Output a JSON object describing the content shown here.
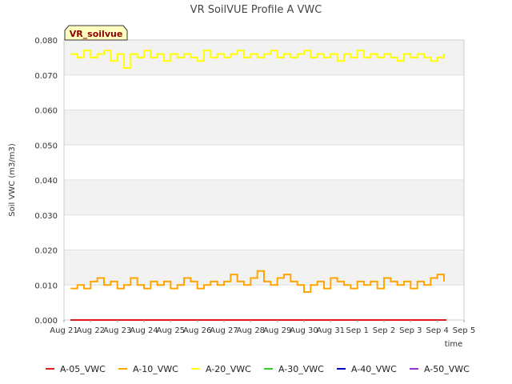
{
  "chart_data": {
    "type": "line",
    "title": "VR SoilVUE Profile A VWC",
    "badge": "VR_soilvue",
    "ylabel": "Soil VWC (m3/m3)",
    "xlabel": "time",
    "ylim": [
      0.0,
      0.08
    ],
    "yticks": [
      "0.000",
      "0.010",
      "0.020",
      "0.030",
      "0.040",
      "0.050",
      "0.060",
      "0.070",
      "0.080"
    ],
    "xticks": [
      "Aug 21",
      "Aug 22",
      "Aug 23",
      "Aug 24",
      "Aug 25",
      "Aug 26",
      "Aug 27",
      "Aug 28",
      "Aug 29",
      "Aug 30",
      "Aug 31",
      "Sep 1",
      "Sep 2",
      "Sep 3",
      "Sep 4",
      "Sep 5"
    ],
    "xlim": [
      "2023-08-21",
      "2023-09-05"
    ],
    "grid": true,
    "legend_position": "bottom",
    "series": [
      {
        "name": "A-05_VWC",
        "color": "#e31a1c",
        "x": [
          "2023-08-21 06:00",
          "2023-09-04 08:00"
        ],
        "values": [
          0.0,
          0.0
        ]
      },
      {
        "name": "A-10_VWC",
        "color": "#ffa500",
        "x": [
          "2023-08-21 06:00",
          "2023-08-21 12:00",
          "2023-08-21 18:00",
          "2023-08-22 00:00",
          "2023-08-22 06:00",
          "2023-08-22 12:00",
          "2023-08-22 18:00",
          "2023-08-23 00:00",
          "2023-08-23 06:00",
          "2023-08-23 12:00",
          "2023-08-23 18:00",
          "2023-08-24 00:00",
          "2023-08-24 06:00",
          "2023-08-24 12:00",
          "2023-08-24 18:00",
          "2023-08-25 00:00",
          "2023-08-25 06:00",
          "2023-08-25 12:00",
          "2023-08-25 18:00",
          "2023-08-26 00:00",
          "2023-08-26 06:00",
          "2023-08-26 12:00",
          "2023-08-26 18:00",
          "2023-08-27 00:00",
          "2023-08-27 06:00",
          "2023-08-27 12:00",
          "2023-08-27 18:00",
          "2023-08-28 00:00",
          "2023-08-28 06:00",
          "2023-08-28 12:00",
          "2023-08-28 18:00",
          "2023-08-29 00:00",
          "2023-08-29 06:00",
          "2023-08-29 12:00",
          "2023-08-29 18:00",
          "2023-08-30 00:00",
          "2023-08-30 06:00",
          "2023-08-30 12:00",
          "2023-08-30 18:00",
          "2023-08-31 00:00",
          "2023-08-31 06:00",
          "2023-08-31 12:00",
          "2023-08-31 18:00",
          "2023-09-01 00:00",
          "2023-09-01 06:00",
          "2023-09-01 12:00",
          "2023-09-01 18:00",
          "2023-09-02 00:00",
          "2023-09-02 06:00",
          "2023-09-02 12:00",
          "2023-09-02 18:00",
          "2023-09-03 00:00",
          "2023-09-03 06:00",
          "2023-09-03 12:00",
          "2023-09-03 18:00",
          "2023-09-04 00:00",
          "2023-09-04 06:00"
        ],
        "values": [
          0.009,
          0.01,
          0.009,
          0.011,
          0.012,
          0.01,
          0.011,
          0.009,
          0.01,
          0.012,
          0.01,
          0.009,
          0.011,
          0.01,
          0.011,
          0.009,
          0.01,
          0.012,
          0.011,
          0.009,
          0.01,
          0.011,
          0.01,
          0.011,
          0.013,
          0.011,
          0.01,
          0.012,
          0.014,
          0.011,
          0.01,
          0.012,
          0.013,
          0.011,
          0.01,
          0.008,
          0.01,
          0.011,
          0.009,
          0.012,
          0.011,
          0.01,
          0.009,
          0.011,
          0.01,
          0.011,
          0.009,
          0.012,
          0.011,
          0.01,
          0.011,
          0.009,
          0.011,
          0.01,
          0.012,
          0.013,
          0.011
        ]
      },
      {
        "name": "A-20_VWC",
        "color": "#ffff00",
        "x": [
          "2023-08-21 06:00",
          "2023-08-21 12:00",
          "2023-08-21 18:00",
          "2023-08-22 00:00",
          "2023-08-22 06:00",
          "2023-08-22 12:00",
          "2023-08-22 18:00",
          "2023-08-23 00:00",
          "2023-08-23 06:00",
          "2023-08-23 12:00",
          "2023-08-23 18:00",
          "2023-08-24 00:00",
          "2023-08-24 06:00",
          "2023-08-24 12:00",
          "2023-08-24 18:00",
          "2023-08-25 00:00",
          "2023-08-25 06:00",
          "2023-08-25 12:00",
          "2023-08-25 18:00",
          "2023-08-26 00:00",
          "2023-08-26 06:00",
          "2023-08-26 12:00",
          "2023-08-26 18:00",
          "2023-08-27 00:00",
          "2023-08-27 06:00",
          "2023-08-27 12:00",
          "2023-08-27 18:00",
          "2023-08-28 00:00",
          "2023-08-28 06:00",
          "2023-08-28 12:00",
          "2023-08-28 18:00",
          "2023-08-29 00:00",
          "2023-08-29 06:00",
          "2023-08-29 12:00",
          "2023-08-29 18:00",
          "2023-08-30 00:00",
          "2023-08-30 06:00",
          "2023-08-30 12:00",
          "2023-08-30 18:00",
          "2023-08-31 00:00",
          "2023-08-31 06:00",
          "2023-08-31 12:00",
          "2023-08-31 18:00",
          "2023-09-01 00:00",
          "2023-09-01 06:00",
          "2023-09-01 12:00",
          "2023-09-01 18:00",
          "2023-09-02 00:00",
          "2023-09-02 06:00",
          "2023-09-02 12:00",
          "2023-09-02 18:00",
          "2023-09-03 00:00",
          "2023-09-03 06:00",
          "2023-09-03 12:00",
          "2023-09-03 18:00",
          "2023-09-04 00:00",
          "2023-09-04 06:00"
        ],
        "values": [
          0.076,
          0.075,
          0.077,
          0.075,
          0.076,
          0.077,
          0.074,
          0.076,
          0.072,
          0.076,
          0.075,
          0.077,
          0.075,
          0.076,
          0.074,
          0.076,
          0.075,
          0.076,
          0.075,
          0.074,
          0.077,
          0.075,
          0.076,
          0.075,
          0.076,
          0.077,
          0.075,
          0.076,
          0.075,
          0.076,
          0.077,
          0.075,
          0.076,
          0.075,
          0.076,
          0.077,
          0.075,
          0.076,
          0.075,
          0.076,
          0.074,
          0.076,
          0.075,
          0.077,
          0.075,
          0.076,
          0.075,
          0.076,
          0.075,
          0.074,
          0.076,
          0.075,
          0.076,
          0.075,
          0.074,
          0.075,
          0.076
        ]
      },
      {
        "name": "A-30_VWC",
        "color": "#33cc33",
        "x": [
          "2023-08-21 06:00",
          "2023-09-04 08:00"
        ],
        "values": [
          0.0,
          0.0
        ]
      },
      {
        "name": "A-40_VWC",
        "color": "#0000cc",
        "x": [
          "2023-08-21 06:00",
          "2023-09-04 08:00"
        ],
        "values": [
          0.0,
          0.0
        ]
      },
      {
        "name": "A-50_VWC",
        "color": "#9933cc",
        "x": [
          "2023-08-21 06:00",
          "2023-09-04 08:00"
        ],
        "values": [
          0.0,
          0.0
        ]
      }
    ]
  }
}
